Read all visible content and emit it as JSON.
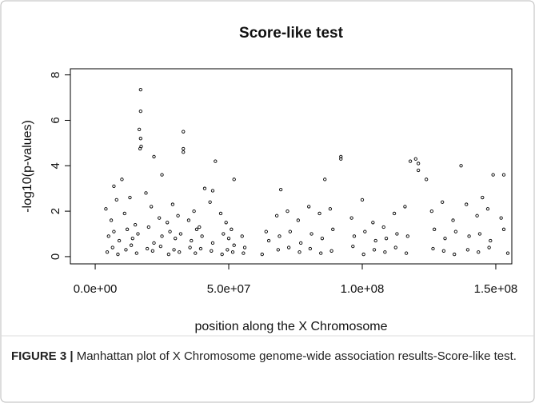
{
  "chart_data": {
    "type": "scatter",
    "title": "Score-like test",
    "x_label": "position along the X Chromosome",
    "y_label": "-log10(p-values)",
    "xlim": [
      -9300000,
      156000000
    ],
    "ylim": [
      -0.32,
      8.27
    ],
    "xticks": [
      {
        "value": 0,
        "label": "0.0e+00"
      },
      {
        "value": 50000000,
        "label": "5.0e+07"
      },
      {
        "value": 100000000,
        "label": "1.0e+08"
      },
      {
        "value": 150000000,
        "label": "1.5e+08"
      }
    ],
    "yticks": [
      0,
      2,
      4,
      6,
      8
    ],
    "color": "#000000",
    "x": [
      17000000.0,
      17000000.0,
      16500000.0,
      17000000.0,
      17200000.0,
      16800000.0,
      22000000.0,
      25000000.0,
      33000000.0,
      33000000.0,
      33000000.0,
      45000000.0,
      52000000.0,
      10000000.0,
      7000000.0,
      92000000.0,
      92000000.0,
      86000000.0,
      118000000.0,
      120000000.0,
      121000000.0,
      121000000.0,
      124000000.0,
      137000000.0,
      149000000.0,
      153000000.0,
      69500000.0,
      41000000.0,
      44000000.0,
      145000000.0,
      4000000.0,
      6000000.0,
      8000000.0,
      11000000.0,
      13000000.0,
      15000000.0,
      19000000.0,
      21000000.0,
      24000000.0,
      27000000.0,
      29000000.0,
      31000000.0,
      35000000.0,
      37000000.0,
      39000000.0,
      43000000.0,
      47000000.0,
      49000000.0,
      51000000.0,
      55000000.0,
      64000000.0,
      68000000.0,
      72000000.0,
      76000000.0,
      80000000.0,
      84000000.0,
      88000000.0,
      96000000.0,
      100000000.0,
      104000000.0,
      108000000.0,
      112000000.0,
      116000000.0,
      126000000.0,
      130000000.0,
      134000000.0,
      139000000.0,
      143000000.0,
      147000000.0,
      152000000.0,
      5000000.0,
      7000000.0,
      9000000.0,
      12000000.0,
      14000000.0,
      16000000.0,
      20000000.0,
      22000000.0,
      25000000.0,
      28000000.0,
      30000000.0,
      32000000.0,
      36000000.0,
      38000000.0,
      40000000.0,
      44000000.0,
      48000000.0,
      50000000.0,
      52000000.0,
      56000000.0,
      65000000.0,
      69000000.0,
      73000000.0,
      77000000.0,
      81000000.0,
      85000000.0,
      89000000.0,
      97000000.0,
      101000000.0,
      105000000.0,
      109000000.0,
      113000000.0,
      117000000.0,
      127000000.0,
      131000000.0,
      135000000.0,
      140000000.0,
      144000000.0,
      148000000.0,
      153000000.0,
      4500000.0,
      6500000.0,
      8500000.0,
      11500000.0,
      13500000.0,
      15500000.0,
      19500000.0,
      21500000.0,
      24500000.0,
      27500000.0,
      29500000.0,
      31500000.0,
      35500000.0,
      37500000.0,
      39500000.0,
      43500000.0,
      47500000.0,
      49500000.0,
      51500000.0,
      55500000.0,
      62500000.0,
      68500000.0,
      72500000.0,
      76500000.0,
      80500000.0,
      84500000.0,
      88500000.0,
      96500000.0,
      100500000.0,
      104500000.0,
      108500000.0,
      112500000.0,
      116500000.0,
      126500000.0,
      130500000.0,
      134500000.0,
      139500000.0,
      143500000.0,
      147500000.0,
      154500000.0
    ],
    "values": [
      7.35,
      6.4,
      5.6,
      5.2,
      4.85,
      4.75,
      4.4,
      3.6,
      5.5,
      4.75,
      4.6,
      4.2,
      3.4,
      3.4,
      3.1,
      4.4,
      4.3,
      3.4,
      4.2,
      4.3,
      4.1,
      3.8,
      3.4,
      4.0,
      3.6,
      3.6,
      2.95,
      3.0,
      2.9,
      2.6,
      2.1,
      1.6,
      2.5,
      1.9,
      2.6,
      1.4,
      2.8,
      2.2,
      1.7,
      1.5,
      2.3,
      1.8,
      1.6,
      2.0,
      1.3,
      2.4,
      1.9,
      1.5,
      1.2,
      0.9,
      1.1,
      1.8,
      2.0,
      1.6,
      2.2,
      1.9,
      2.1,
      1.7,
      2.5,
      1.5,
      1.3,
      1.9,
      2.2,
      2.0,
      2.4,
      1.6,
      2.3,
      1.8,
      2.1,
      1.7,
      0.9,
      1.1,
      0.7,
      1.2,
      0.8,
      1.0,
      1.3,
      0.6,
      0.9,
      1.1,
      0.8,
      1.0,
      0.7,
      1.2,
      0.9,
      0.6,
      1.0,
      0.8,
      0.5,
      0.4,
      0.7,
      0.9,
      1.1,
      0.6,
      1.0,
      0.8,
      1.2,
      0.9,
      1.1,
      0.7,
      0.8,
      1.0,
      0.9,
      1.2,
      0.8,
      1.1,
      0.9,
      1.0,
      0.7,
      1.2,
      0.2,
      0.4,
      0.1,
      0.3,
      0.5,
      0.15,
      0.35,
      0.25,
      0.45,
      0.1,
      0.3,
      0.2,
      0.4,
      0.15,
      0.35,
      0.25,
      0.1,
      0.3,
      0.2,
      0.15,
      0.1,
      0.3,
      0.4,
      0.2,
      0.35,
      0.15,
      0.25,
      0.45,
      0.1,
      0.3,
      0.2,
      0.4,
      0.15,
      0.35,
      0.25,
      0.1,
      0.3,
      0.2,
      0.4,
      0.15
    ]
  },
  "caption": {
    "label": "FIGURE 3 |",
    "text": "Manhattan plot of X Chromosome genome-wide association results-Score-like test."
  }
}
